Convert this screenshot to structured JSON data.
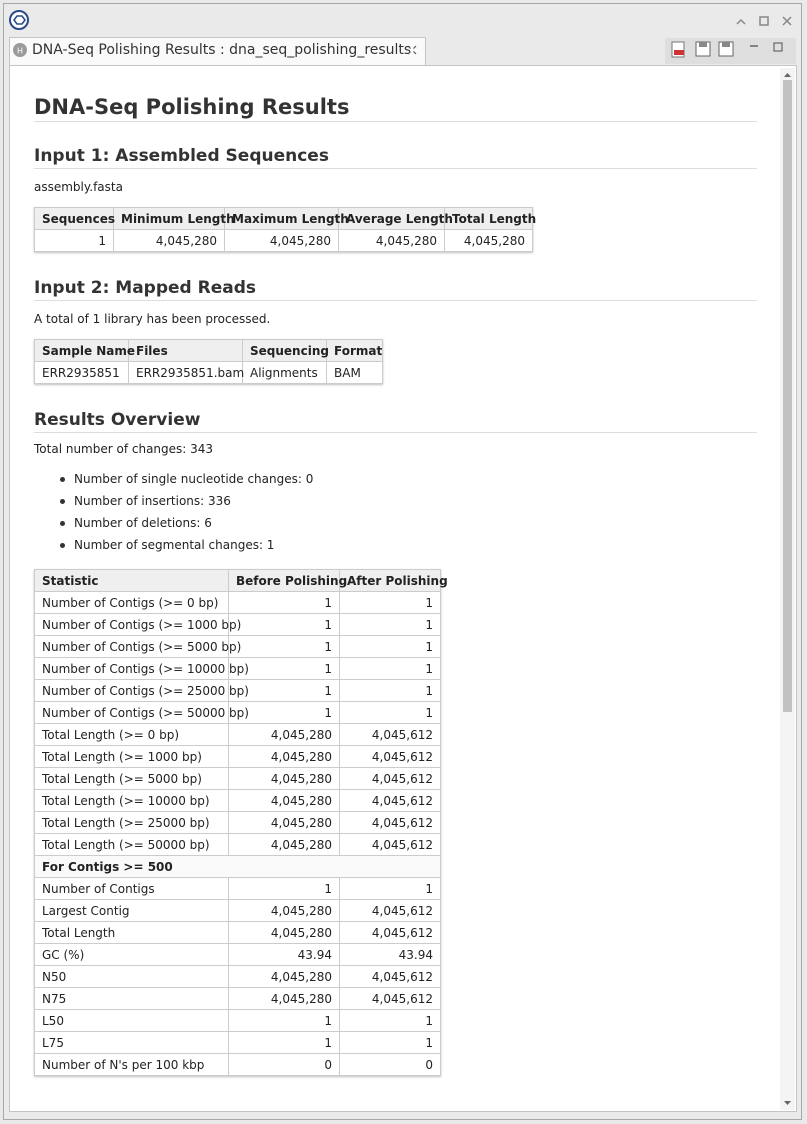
{
  "window": {
    "tab_title": "DNA-Seq Polishing Results : dna_seq_polishing_results"
  },
  "report": {
    "title": "DNA-Seq Polishing Results",
    "input1": {
      "heading": "Input 1: Assembled Sequences",
      "file": "assembly.fasta",
      "table": {
        "header": [
          "Sequences",
          "Minimum Length",
          "Maximum Length",
          "Average Length",
          "Total Length"
        ],
        "rows": [
          [
            "1",
            "4,045,280",
            "4,045,280",
            "4,045,280",
            "4,045,280"
          ]
        ]
      }
    },
    "input2": {
      "heading": "Input 2: Mapped Reads",
      "note": "A total of 1 library has been processed.",
      "table": {
        "header": [
          "Sample Name",
          "Files",
          "Sequencing",
          "Format"
        ],
        "rows": [
          [
            "ERR2935851",
            "ERR2935851.bam",
            "Alignments",
            "BAM"
          ]
        ]
      }
    },
    "overview": {
      "heading": "Results Overview",
      "total": "Total number of changes: 343",
      "bullets": [
        "Number of single nucleotide changes: 0",
        "Number of insertions: 336",
        "Number of deletions: 6",
        "Number of segmental changes: 1"
      ],
      "table": {
        "header": [
          "Statistic",
          "Before Polishing",
          "After Polishing"
        ],
        "rows": [
          [
            "Number of Contigs (>= 0 bp)",
            "1",
            "1"
          ],
          [
            "Number of Contigs (>= 1000 bp)",
            "1",
            "1"
          ],
          [
            "Number of Contigs (>= 5000 bp)",
            "1",
            "1"
          ],
          [
            "Number of Contigs (>= 10000 bp)",
            "1",
            "1"
          ],
          [
            "Number of Contigs (>= 25000 bp)",
            "1",
            "1"
          ],
          [
            "Number of Contigs (>= 50000 bp)",
            "1",
            "1"
          ],
          [
            "Total Length (>= 0 bp)",
            "4,045,280",
            "4,045,612"
          ],
          [
            "Total Length (>= 1000 bp)",
            "4,045,280",
            "4,045,612"
          ],
          [
            "Total Length (>= 5000 bp)",
            "4,045,280",
            "4,045,612"
          ],
          [
            "Total Length (>= 10000 bp)",
            "4,045,280",
            "4,045,612"
          ],
          [
            "Total Length (>= 25000 bp)",
            "4,045,280",
            "4,045,612"
          ],
          [
            "Total Length (>= 50000 bp)",
            "4,045,280",
            "4,045,612"
          ],
          [
            "For Contigs >= 500"
          ],
          [
            "Number of Contigs",
            "1",
            "1"
          ],
          [
            "Largest Contig",
            "4,045,280",
            "4,045,612"
          ],
          [
            "Total Length",
            "4,045,280",
            "4,045,612"
          ],
          [
            "GC (%)",
            "43.94",
            "43.94"
          ],
          [
            "N50",
            "4,045,280",
            "4,045,612"
          ],
          [
            "N75",
            "4,045,280",
            "4,045,612"
          ],
          [
            "L50",
            "1",
            "1"
          ],
          [
            "L75",
            "1",
            "1"
          ],
          [
            "Number of N's per 100 kbp",
            "0",
            "0"
          ]
        ]
      }
    }
  }
}
